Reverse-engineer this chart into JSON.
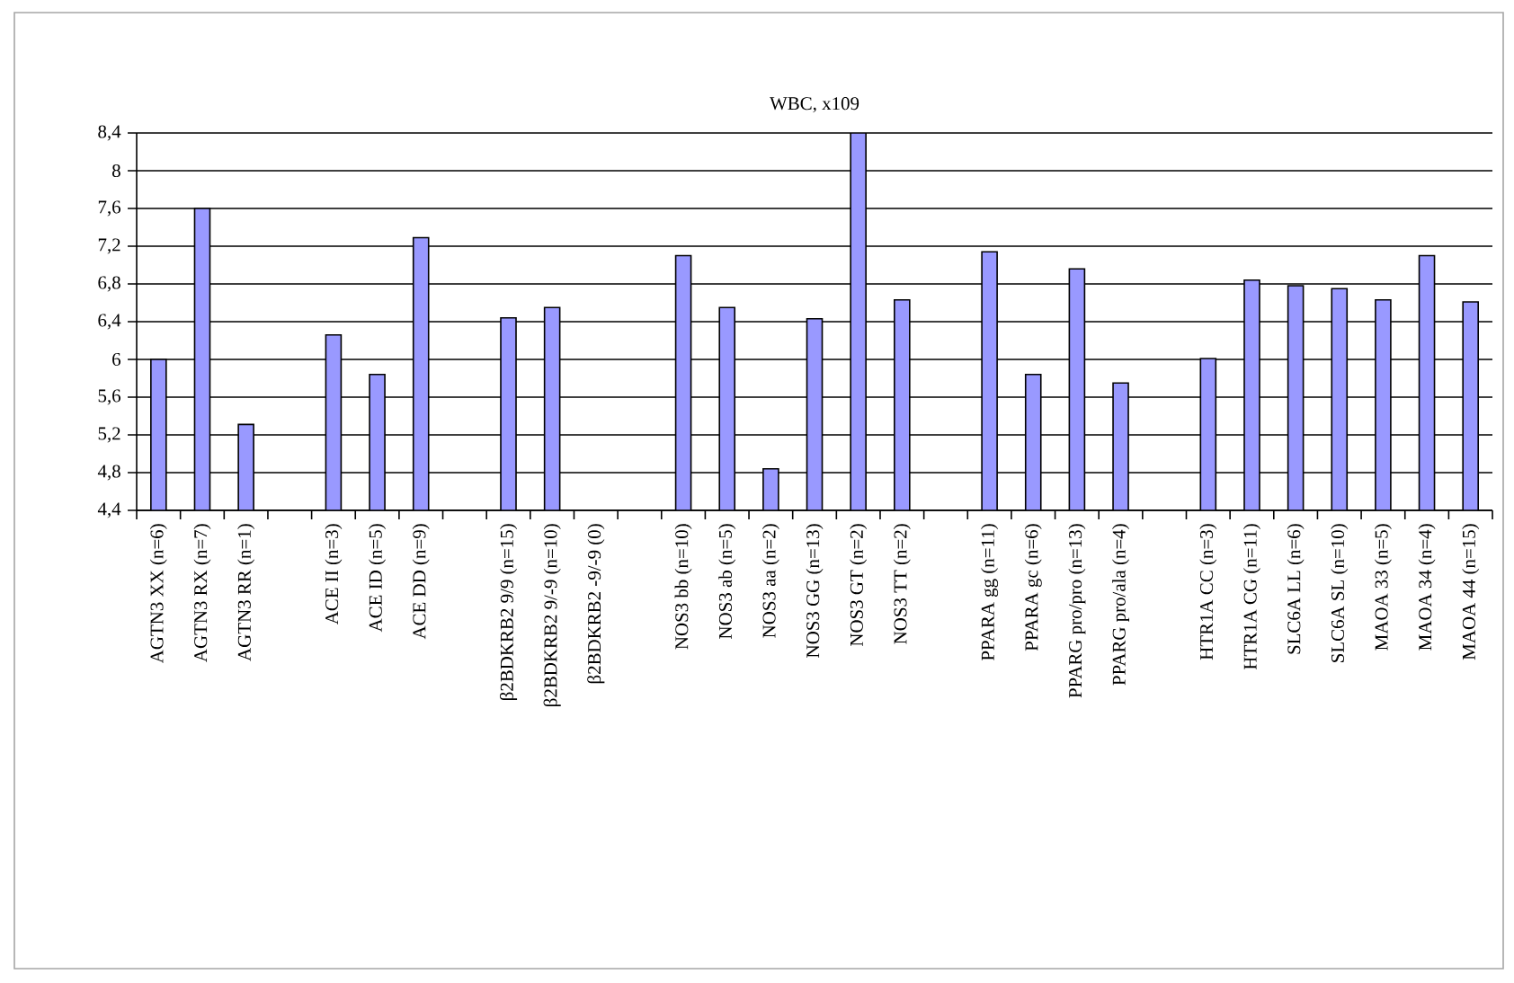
{
  "chart_data": {
    "type": "bar",
    "title": "WBC, x109",
    "color": "#9999ff",
    "grid": "y",
    "categories": [
      "AGTN3 XX (n=6)",
      "AGTN3 RX (n=7)",
      "AGTN3 RR (n=1)",
      null,
      "ACE II (n=3)",
      "ACE ID (n=5)",
      "ACE DD  (n=9)",
      null,
      "β2BDKRB2 9/9 (n=15)",
      "β2BDKRB2 9/-9 (n=10)",
      "β2BDKRB2 -9/-9 (0)",
      null,
      "NOS3 bb (n=10)",
      "NOS3 ab (n=5)",
      "NOS3 aa (n=2)",
      "NOS3 GG (n=13)",
      "NOS3 GT (n=2)",
      "NOS3 TT (n=2)",
      null,
      "PPARA gg (n=11)",
      "PPARA gc (n=6)",
      "PPARG pro/pro (n=13)",
      "PPARG pro/ala (n=4)",
      null,
      "HTR1A CC (n=3)",
      "HTR1A CG (n=11)",
      "SLC6A LL (n=6)",
      "SLC6A SL (n=10)",
      "MAOA 33 (n=5)",
      "MAOA 34 (n=4)",
      "MAOA 44 (n=15)"
    ],
    "values": [
      6.0,
      7.6,
      5.31,
      null,
      6.26,
      5.84,
      7.29,
      null,
      6.44,
      6.55,
      null,
      null,
      7.1,
      6.55,
      4.84,
      6.43,
      8.4,
      6.63,
      null,
      7.14,
      5.84,
      6.96,
      5.75,
      null,
      6.01,
      6.84,
      6.78,
      6.75,
      6.63,
      7.1,
      6.61
    ],
    "ylim": [
      4.4,
      8.4
    ],
    "yticks": [
      {
        "value": 4.4,
        "label": "4,4"
      },
      {
        "value": 4.8,
        "label": "4,8"
      },
      {
        "value": 5.2,
        "label": "5,2"
      },
      {
        "value": 5.6,
        "label": "5,6"
      },
      6,
      {
        "value": 6.4,
        "label": "6,4"
      },
      {
        "value": 6.8,
        "label": "6,8"
      },
      {
        "value": 7.2,
        "label": "7,2"
      },
      {
        "value": 7.6,
        "label": "7,6"
      },
      8,
      {
        "value": 8.4,
        "label": "8,4"
      }
    ]
  }
}
